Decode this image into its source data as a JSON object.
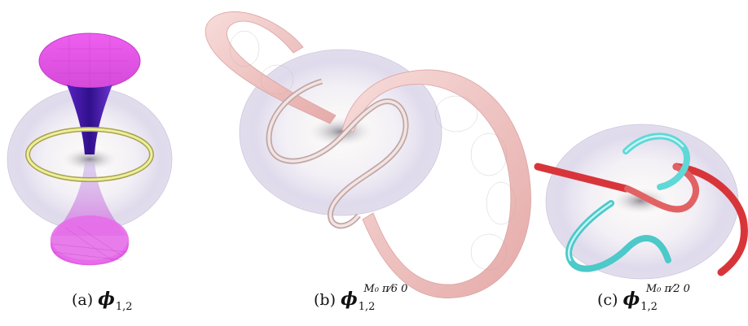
{
  "panels": [
    {
      "label": "(a)",
      "symbol": "ϕ",
      "subscript": "1,2",
      "superscript": ""
    },
    {
      "label": "(b)",
      "symbol": "ϕ",
      "subscript": "1,2",
      "superscript": "M₀ π⁄6 0"
    },
    {
      "label": "(c)",
      "symbol": "ϕ",
      "subscript": "1,2",
      "superscript": "M₀ π⁄2 0"
    }
  ],
  "colors": {
    "torus": "#d8d2e8",
    "magenta_sheet": "#e65ce8",
    "deep_purple": "#4b1fb0",
    "yellow_ring": "#e2e38a",
    "pink_tube": "#f0c9c7",
    "red_tube": "#d8353a",
    "cyan_tube": "#6fe6e4"
  }
}
